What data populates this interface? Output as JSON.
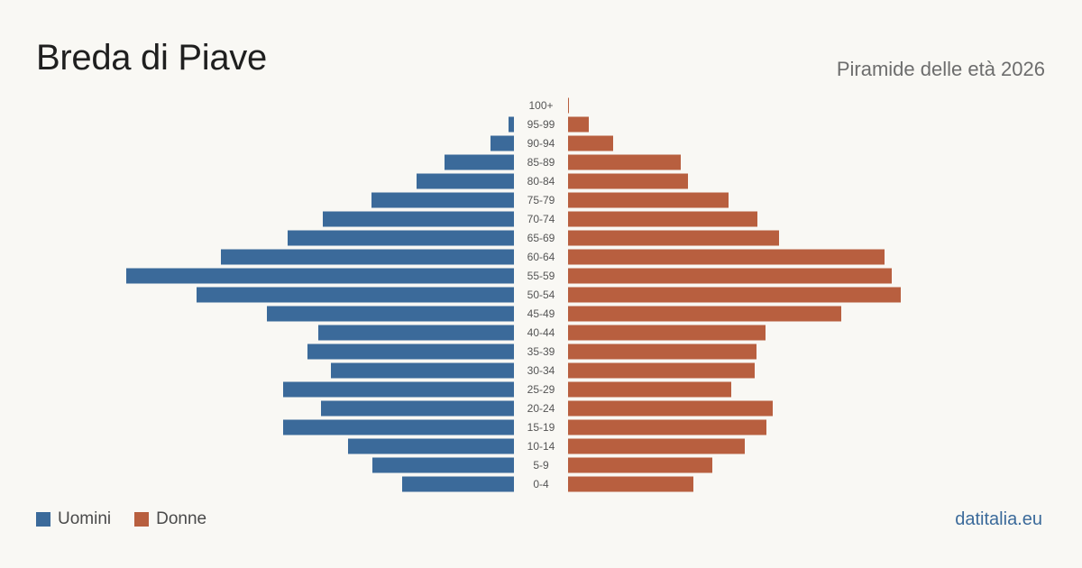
{
  "header": {
    "title": "Breda di Piave",
    "subtitle": "Piramide delle età 2026"
  },
  "legend": {
    "men_label": "Uomini",
    "women_label": "Donne"
  },
  "footer": {
    "source": "datitalia.eu"
  },
  "colors": {
    "men": "#3b6a9a",
    "women": "#b85f3f"
  },
  "chart_data": {
    "type": "bar",
    "orientation": "horizontal-pyramid",
    "categories": [
      "0-4",
      "5-9",
      "10-14",
      "15-19",
      "20-24",
      "25-29",
      "30-34",
      "35-39",
      "40-44",
      "45-49",
      "50-54",
      "55-59",
      "60-64",
      "65-69",
      "70-74",
      "75-79",
      "80-84",
      "85-89",
      "90-94",
      "95-99",
      "100+"
    ],
    "series": [
      {
        "name": "Uomini",
        "values": [
          124,
          157,
          184,
          256,
          214,
          256,
          203,
          229,
          217,
          274,
          352,
          430,
          325,
          251,
          212,
          158,
          108,
          77,
          26,
          6,
          0
        ]
      },
      {
        "name": "Donne",
        "values": [
          139,
          160,
          196,
          220,
          227,
          181,
          207,
          209,
          219,
          303,
          369,
          359,
          351,
          234,
          210,
          178,
          133,
          125,
          50,
          23,
          1
        ]
      }
    ],
    "legend_position": "bottom-left",
    "grid": false
  }
}
